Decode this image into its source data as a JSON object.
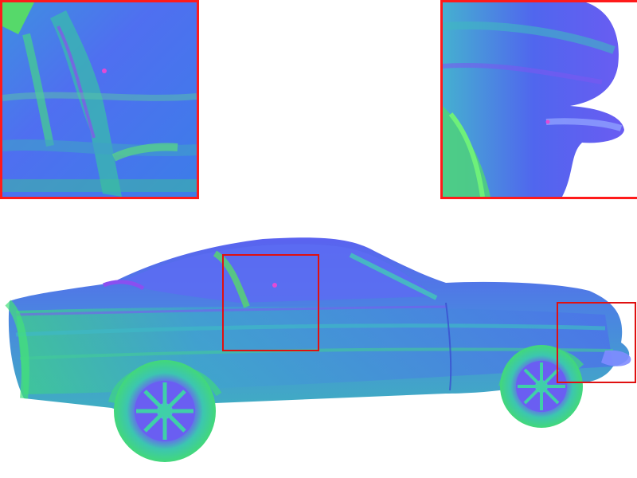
{
  "image": {
    "subject": "car-normal-map-render",
    "colors": {
      "inset_border": "#ff1a1a",
      "box_border": "#e01010",
      "blue": "#4a6cf2",
      "teal": "#36b8c6",
      "green": "#3fe07a",
      "purple": "#8a4ff0",
      "magenta": "#e24ad6"
    },
    "insets": [
      {
        "region": "door-and-window-detail"
      },
      {
        "region": "rear-bumper-detail"
      }
    ]
  }
}
